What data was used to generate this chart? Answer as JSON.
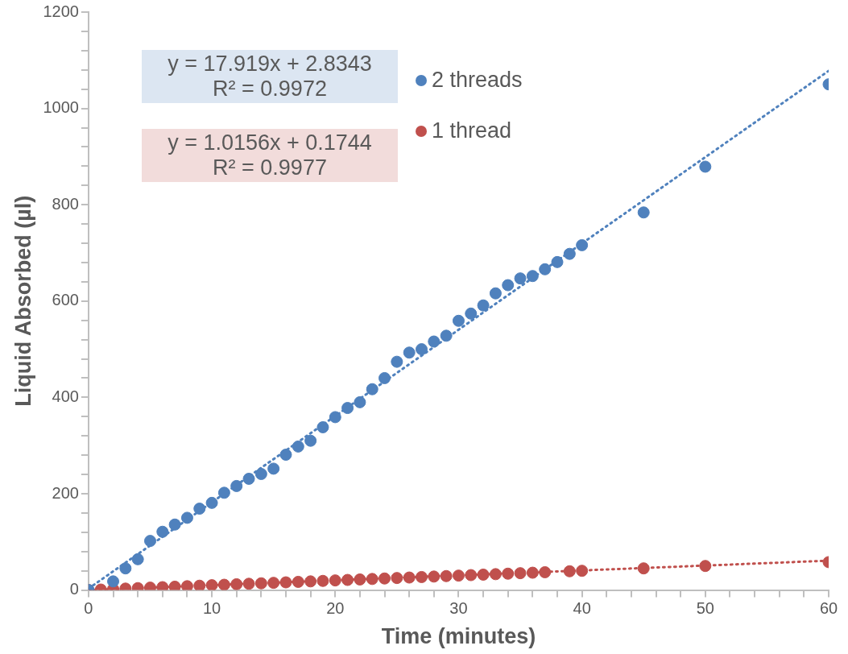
{
  "chart_data": {
    "type": "scatter",
    "xlabel": "Time (minutes)",
    "ylabel": "Liquid Absorbed (µl)",
    "xlim": [
      0,
      60
    ],
    "ylim": [
      0,
      1200
    ],
    "xticks": [
      0,
      {
        "value": 2,
        "label": null
      },
      {
        "value": 4,
        "label": null
      },
      {
        "value": 6,
        "label": null
      },
      {
        "value": 8,
        "label": null
      },
      10,
      {
        "value": 12,
        "label": null
      },
      {
        "value": 14,
        "label": null
      },
      {
        "value": 16,
        "label": null
      },
      {
        "value": 18,
        "label": null
      },
      20,
      {
        "value": 22,
        "label": null
      },
      {
        "value": 24,
        "label": null
      },
      {
        "value": 26,
        "label": null
      },
      {
        "value": 28,
        "label": null
      },
      30,
      {
        "value": 32,
        "label": null
      },
      {
        "value": 34,
        "label": null
      },
      {
        "value": 36,
        "label": null
      },
      {
        "value": 38,
        "label": null
      },
      40,
      {
        "value": 42,
        "label": null
      },
      {
        "value": 44,
        "label": null
      },
      {
        "value": 46,
        "label": null
      },
      {
        "value": 48,
        "label": null
      },
      50,
      {
        "value": 52,
        "label": null
      },
      {
        "value": 54,
        "label": null
      },
      {
        "value": 56,
        "label": null
      },
      {
        "value": 58,
        "label": null
      },
      60
    ],
    "yticks": [
      0,
      {
        "value": 40,
        "label": null
      },
      {
        "value": 80,
        "label": null
      },
      {
        "value": 120,
        "label": null
      },
      {
        "value": 160,
        "label": null
      },
      200,
      {
        "value": 240,
        "label": null
      },
      {
        "value": 280,
        "label": null
      },
      {
        "value": 320,
        "label": null
      },
      {
        "value": 360,
        "label": null
      },
      400,
      {
        "value": 440,
        "label": null
      },
      {
        "value": 480,
        "label": null
      },
      {
        "value": 520,
        "label": null
      },
      {
        "value": 560,
        "label": null
      },
      600,
      {
        "value": 640,
        "label": null
      },
      {
        "value": 680,
        "label": null
      },
      {
        "value": 720,
        "label": null
      },
      {
        "value": 760,
        "label": null
      },
      800,
      {
        "value": 840,
        "label": null
      },
      {
        "value": 880,
        "label": null
      },
      {
        "value": 920,
        "label": null
      },
      {
        "value": 960,
        "label": null
      },
      1000,
      {
        "value": 1040,
        "label": null
      },
      {
        "value": 1080,
        "label": null
      },
      {
        "value": 1120,
        "label": null
      },
      {
        "value": 1160,
        "label": null
      },
      1200
    ],
    "grid": false,
    "legend": "top right",
    "annotations": [
      "y = 17.919x + 2.8343\nR² = 0.9972",
      "y = 1.0156x + 0.1744\nR² = 0.9977"
    ],
    "series": [
      {
        "name": "2 threads",
        "color": "#4f81bd",
        "marker": "circle",
        "x": [
          0,
          2,
          3,
          4,
          5,
          6,
          7,
          8,
          9,
          10,
          11,
          12,
          13,
          14,
          15,
          16,
          17,
          18,
          19,
          20,
          21,
          22,
          23,
          24,
          25,
          26,
          27,
          28,
          29,
          30,
          31,
          32,
          33,
          34,
          35,
          36,
          37,
          38,
          39,
          40,
          45,
          50,
          60
        ],
        "values": [
          0,
          18,
          45,
          64,
          102,
          121,
          136,
          150,
          169,
          181,
          202,
          216,
          231,
          241,
          252,
          281,
          298,
          310,
          338,
          359,
          378,
          390,
          417,
          440,
          474,
          493,
          500,
          516,
          528,
          559,
          574,
          591,
          616,
          633,
          647,
          652,
          666,
          681,
          698,
          716,
          784,
          879,
          1050
        ]
      },
      {
        "name": "1 thread",
        "color": "#c0504d",
        "marker": "circle",
        "x": [
          0,
          1,
          2,
          3,
          4,
          5,
          6,
          7,
          8,
          9,
          10,
          11,
          12,
          13,
          14,
          15,
          16,
          17,
          18,
          19,
          20,
          21,
          22,
          23,
          24,
          25,
          26,
          27,
          28,
          29,
          30,
          31,
          32,
          33,
          34,
          35,
          36,
          37,
          39,
          40,
          45,
          50,
          60
        ],
        "values": [
          0,
          1,
          2,
          3,
          4,
          5,
          6,
          7,
          8,
          9,
          10,
          11,
          12,
          13,
          14,
          15,
          16,
          17,
          18,
          19,
          20,
          21,
          22,
          23,
          24,
          25,
          26,
          27,
          28,
          29,
          30,
          31,
          32,
          33,
          34,
          35,
          36,
          37,
          39,
          40,
          45,
          50,
          58
        ]
      },
      {
        "type": "line",
        "color": "#4f81bd",
        "line_style": "dotted",
        "marker": "none",
        "x": [
          0,
          60
        ],
        "values": [
          3,
          1078
        ]
      },
      {
        "type": "line",
        "color": "#c0504d",
        "line_style": "dotted",
        "marker": "none",
        "x": [
          0,
          60
        ],
        "values": [
          0,
          61
        ]
      }
    ]
  }
}
